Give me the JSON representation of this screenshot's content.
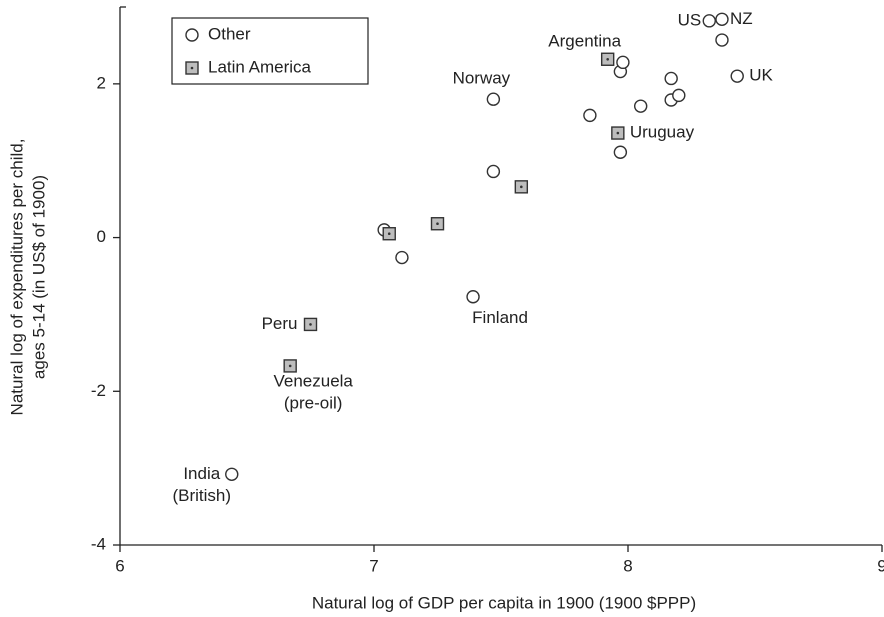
{
  "chart_data": {
    "type": "scatter",
    "x_label": "Natural log of GDP per capita in 1900 (1900 $PPP)",
    "y_label": [
      "Natural log of expenditures per child,",
      "ages 5-14 (in US$ of 1900)"
    ],
    "xlim": [
      6,
      9
    ],
    "xticks": [
      6,
      7,
      8,
      9
    ],
    "ylim": [
      -4,
      3
    ],
    "yticks": [
      -4,
      -2,
      0,
      2
    ],
    "legend": "upper left",
    "series": [
      {
        "name": "Other",
        "marker": "circle",
        "color": "#ffffff",
        "x": [
          6.44,
          7.04,
          7.11,
          7.39,
          7.47,
          7.47,
          7.85,
          7.97,
          7.98,
          7.97,
          8.05,
          8.17,
          8.17,
          8.2,
          8.32,
          8.37,
          8.37,
          8.43
        ],
        "values": [
          -3.08,
          0.1,
          -0.26,
          -0.77,
          0.86,
          1.8,
          1.59,
          2.16,
          2.28,
          1.11,
          1.71,
          2.07,
          1.79,
          1.85,
          2.82,
          2.84,
          2.57,
          2.1
        ],
        "labels": [
          [
            "India",
            "(British)"
          ],
          null,
          null,
          [
            "Finland"
          ],
          null,
          [
            "Norway"
          ],
          null,
          null,
          null,
          null,
          null,
          null,
          null,
          null,
          [
            "US"
          ],
          [
            "NZ"
          ],
          null,
          [
            "UK"
          ]
        ]
      },
      {
        "name": "Latin America",
        "marker": "square",
        "color": "#bdbdbd",
        "x": [
          6.67,
          6.75,
          7.06,
          7.25,
          7.58,
          7.92,
          7.96
        ],
        "values": [
          -1.67,
          -1.13,
          0.05,
          0.18,
          0.66,
          2.32,
          1.36
        ],
        "labels": [
          [
            "Venezuela",
            "(pre-oil)"
          ],
          [
            "Peru"
          ],
          null,
          null,
          null,
          [
            "Argentina"
          ],
          [
            "Uruguay"
          ]
        ]
      }
    ]
  }
}
